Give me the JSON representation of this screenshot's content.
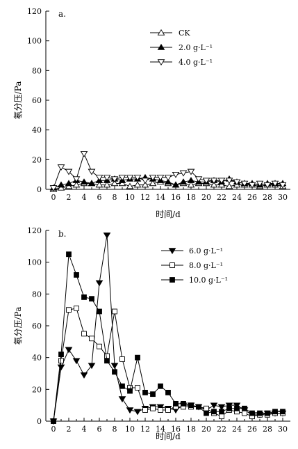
{
  "chart_data": [
    {
      "type": "line",
      "panel_label": "a.",
      "xlabel": "时间/d",
      "ylabel": "氡分压/Pa",
      "xlim": [
        -1,
        31
      ],
      "ylim": [
        0,
        120
      ],
      "x_ticks": [
        0,
        2,
        4,
        6,
        8,
        10,
        12,
        14,
        16,
        18,
        20,
        22,
        24,
        26,
        28,
        30
      ],
      "y_ticks": [
        0,
        20,
        40,
        60,
        80,
        100,
        120
      ],
      "grid": false,
      "legend_position": "top-right",
      "series": [
        {
          "name": "CK",
          "marker": "triangle-up-open",
          "x": [
            0,
            1,
            2,
            3,
            4,
            5,
            6,
            7,
            8,
            9,
            10,
            11,
            12,
            13,
            14,
            15,
            16,
            17,
            18,
            19,
            20,
            21,
            22,
            23,
            24,
            25,
            26,
            27,
            28,
            29,
            30
          ],
          "values": [
            0,
            1,
            2,
            3,
            4,
            4,
            3,
            3,
            4,
            4,
            2,
            3,
            3,
            4,
            5,
            4,
            3,
            4,
            3,
            4,
            4,
            3,
            3,
            2,
            3,
            3,
            3,
            2,
            3,
            3,
            2
          ]
        },
        {
          "name": "2.0 g·L⁻¹",
          "marker": "triangle-up-filled",
          "x": [
            0,
            1,
            2,
            3,
            4,
            5,
            6,
            7,
            8,
            9,
            10,
            11,
            12,
            13,
            14,
            15,
            16,
            17,
            18,
            19,
            20,
            21,
            22,
            23,
            24,
            25,
            26,
            27,
            28,
            29,
            30
          ],
          "values": [
            1,
            3,
            4,
            6,
            5,
            4,
            6,
            6,
            7,
            6,
            7,
            7,
            8,
            7,
            6,
            5,
            3,
            5,
            6,
            5,
            5,
            6,
            5,
            7,
            5,
            4,
            4,
            3,
            4,
            4,
            4
          ]
        },
        {
          "name": "4.0 g·L⁻¹",
          "marker": "triangle-down-open",
          "x": [
            0,
            1,
            2,
            3,
            4,
            5,
            6,
            7,
            8,
            9,
            10,
            11,
            12,
            13,
            14,
            15,
            16,
            17,
            18,
            19,
            20,
            21,
            22,
            23,
            24,
            25,
            26,
            27,
            28,
            29,
            30
          ],
          "values": [
            1,
            15,
            12,
            7,
            24,
            12,
            8,
            8,
            7,
            8,
            8,
            8,
            6,
            8,
            8,
            8,
            10,
            11,
            12,
            7,
            6,
            6,
            6,
            6,
            5,
            4,
            3,
            4,
            3,
            4,
            3
          ]
        }
      ]
    },
    {
      "type": "line",
      "panel_label": "b.",
      "xlabel": "时间/d",
      "ylabel": "氡分压/Pa",
      "xlim": [
        -1,
        31
      ],
      "ylim": [
        0,
        120
      ],
      "x_ticks": [
        0,
        2,
        4,
        6,
        8,
        10,
        12,
        14,
        16,
        18,
        20,
        22,
        24,
        26,
        28,
        30
      ],
      "y_ticks": [
        0,
        20,
        40,
        60,
        80,
        100,
        120
      ],
      "grid": false,
      "legend_position": "top-right",
      "series": [
        {
          "name": "6.0 g·L⁻¹",
          "marker": "triangle-down-filled",
          "x": [
            0,
            1,
            2,
            3,
            4,
            5,
            6,
            7,
            8,
            9,
            10,
            11,
            12,
            13,
            14,
            15,
            16,
            17,
            18,
            19,
            20,
            21,
            22,
            23,
            24,
            25,
            26,
            27,
            28,
            29,
            30
          ],
          "values": [
            0,
            34,
            45,
            38,
            29,
            35,
            87,
            117,
            35,
            14,
            7,
            6,
            8,
            9,
            9,
            8,
            7,
            10,
            10,
            9,
            7,
            10,
            9,
            10,
            10,
            7,
            4,
            4,
            5,
            5,
            5
          ]
        },
        {
          "name": "8.0 g·L⁻¹",
          "marker": "square-open",
          "x": [
            0,
            1,
            2,
            3,
            4,
            5,
            6,
            7,
            8,
            9,
            10,
            11,
            12,
            13,
            14,
            15,
            16,
            17,
            18,
            19,
            20,
            21,
            22,
            23,
            24,
            25,
            26,
            27,
            28,
            29,
            30
          ],
          "values": [
            0,
            38,
            70,
            71,
            55,
            52,
            47,
            41,
            69,
            39,
            21,
            21,
            7,
            8,
            7,
            7,
            9,
            9,
            9,
            9,
            8,
            5,
            3,
            7,
            6,
            5,
            3,
            4,
            4,
            5,
            5
          ]
        },
        {
          "name": "10.0 g·L⁻¹",
          "marker": "square-filled",
          "x": [
            0,
            1,
            2,
            3,
            4,
            5,
            6,
            7,
            8,
            9,
            10,
            11,
            12,
            13,
            14,
            15,
            16,
            17,
            18,
            19,
            20,
            21,
            22,
            23,
            24,
            25,
            26,
            27,
            28,
            29,
            30
          ],
          "values": [
            0,
            42,
            105,
            92,
            78,
            77,
            69,
            38,
            31,
            22,
            19,
            40,
            18,
            17,
            22,
            18,
            11,
            11,
            10,
            9,
            5,
            6,
            6,
            8,
            8,
            8,
            5,
            5,
            5,
            6,
            6
          ]
        }
      ]
    }
  ]
}
